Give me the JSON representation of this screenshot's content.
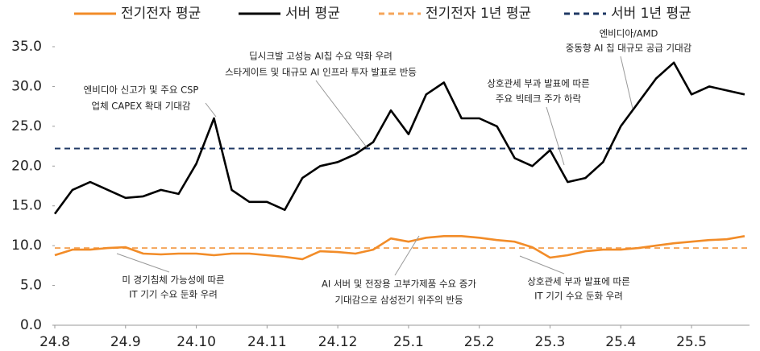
{
  "chart_data": {
    "type": "line",
    "x": [
      0,
      0.25,
      0.5,
      0.75,
      1,
      1.25,
      1.5,
      1.75,
      2,
      2.25,
      2.5,
      2.75,
      3,
      3.25,
      3.5,
      3.75,
      4,
      4.25,
      4.5,
      4.75,
      5,
      5.25,
      5.5,
      5.75,
      6,
      6.25,
      6.5,
      6.75,
      7,
      7.25,
      7.5,
      7.75,
      8,
      8.25,
      8.5,
      8.75,
      9,
      9.25,
      9.5,
      9.75
    ],
    "series": [
      {
        "name": "전기전자 평균",
        "color": "#f28c28",
        "values": [
          8.8,
          9.5,
          9.5,
          9.7,
          9.8,
          9.0,
          8.9,
          9.0,
          9.0,
          8.8,
          9.0,
          9.0,
          8.8,
          8.6,
          8.3,
          9.3,
          9.2,
          9.0,
          9.5,
          10.9,
          10.5,
          11.0,
          11.2,
          11.2,
          11.0,
          10.7,
          10.5,
          9.8,
          8.5,
          8.8,
          9.3,
          9.5,
          9.5,
          9.7,
          10.0,
          10.3,
          10.5,
          10.7,
          10.8,
          11.2
        ]
      },
      {
        "name": "서버 평균",
        "color": "#000000",
        "values": [
          14.0,
          17.0,
          18.0,
          17.0,
          16.0,
          16.2,
          17.0,
          16.5,
          20.3,
          26.0,
          17.0,
          15.5,
          15.5,
          14.5,
          18.5,
          20.0,
          20.5,
          21.5,
          23.0,
          27.0,
          24.0,
          29.0,
          30.5,
          26.0,
          26.0,
          25.0,
          21.0,
          20.0,
          22.0,
          18.0,
          18.5,
          20.5,
          25.0,
          28.0,
          31.0,
          33.0,
          29.0,
          30.0,
          29.5,
          29.0
        ]
      }
    ],
    "reference_lines": [
      {
        "name": "전기전자 1년 평균",
        "value": 9.7,
        "color": "#f5a55a",
        "style": "dashed"
      },
      {
        "name": "서버 1년 평균",
        "value": 22.2,
        "color": "#1f3864",
        "style": "dashed"
      }
    ],
    "xlim": [
      0,
      9.82
    ],
    "xticks": [
      {
        "value": 0,
        "label": "24.8"
      },
      {
        "value": 1,
        "label": "24.9"
      },
      {
        "value": 2,
        "label": "24.10"
      },
      {
        "value": 3,
        "label": "24.11"
      },
      {
        "value": 4,
        "label": "24.12"
      },
      {
        "value": 5,
        "label": "25.1"
      },
      {
        "value": 6,
        "label": "25.2"
      },
      {
        "value": 7,
        "label": "25.3"
      },
      {
        "value": 8,
        "label": "25.4"
      },
      {
        "value": 9,
        "label": "25.5"
      }
    ],
    "ylim": [
      0,
      35
    ],
    "yticks": [
      {
        "value": 0,
        "label": "0.0"
      },
      {
        "value": 5,
        "label": "5.0"
      },
      {
        "value": 10,
        "label": "10.0"
      },
      {
        "value": 15,
        "label": "15.0"
      },
      {
        "value": 20,
        "label": "20.0"
      },
      {
        "value": 25,
        "label": "25.0"
      },
      {
        "value": 30,
        "label": "30.0"
      },
      {
        "value": 35,
        "label": "35.0"
      }
    ],
    "annotations": [
      {
        "lines": [
          "엔비디아 신고가 및 주요 CSP",
          "업체 CAPEX 확대 기대감"
        ]
      },
      {
        "lines": [
          "딥시크발 고성능 AI칩 수요 약화 우려",
          "스타게이트 및 대규모 AI 인프라 투자 발표로 반등"
        ]
      },
      {
        "lines": [
          "상호관세 부과 발표에 따른",
          "주요 빅테크 주가 하락"
        ]
      },
      {
        "lines": [
          "엔비디아/AMD",
          "중동향 AI 칩 대규모 공급 기대감"
        ]
      },
      {
        "lines": [
          "미 경기침체 가능성에 따른",
          "IT 기기 수요 둔화 우려"
        ]
      },
      {
        "lines": [
          "AI 서버 및 전장용 고부가제품 수요 증가",
          "기대감으로 삼성전기 위주의 반등"
        ]
      },
      {
        "lines": [
          "상호관세 부과 발표에 따른",
          "IT 기기 수요 둔화 우려"
        ]
      }
    ],
    "legend": "top"
  }
}
